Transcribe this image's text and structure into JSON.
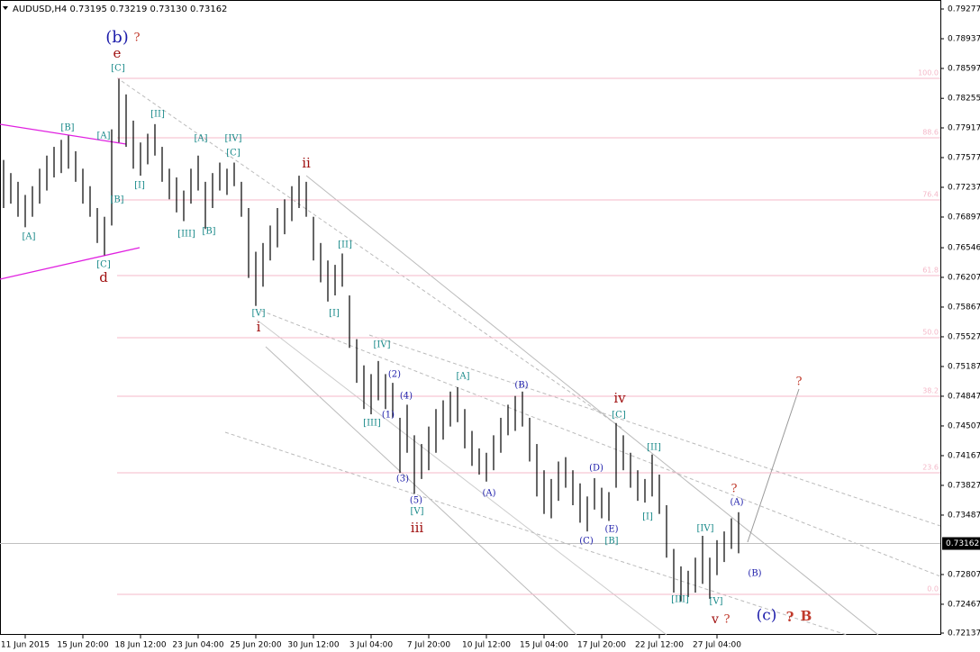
{
  "chart_data": {
    "type": "ohlc-range",
    "symbol_header": "AUDUSD,H4  0.73195 0.73219 0.73130 0.73162",
    "ylim": [
      0.72137,
      0.79277
    ],
    "yticks": [
      0.79277,
      0.78937,
      0.78597,
      0.78255,
      0.77917,
      0.77577,
      0.77237,
      0.76897,
      0.76546,
      0.76207,
      0.75867,
      0.75527,
      0.75187,
      0.74847,
      0.74507,
      0.74167,
      0.73827,
      0.73487,
      0.72807,
      0.72467,
      0.72137
    ],
    "last_price": 0.73162,
    "color": "#000000",
    "xticks": [
      {
        "value": 3,
        "label": "11 Jun 2015"
      },
      {
        "value": 11,
        "label": "15 Jun 20:00"
      },
      {
        "value": 19,
        "label": "18 Jun 12:00"
      },
      {
        "value": 27,
        "label": "23 Jun 04:00"
      },
      {
        "value": 35,
        "label": "25 Jun 20:00"
      },
      {
        "value": 43,
        "label": "30 Jun 12:00"
      },
      {
        "value": 51,
        "label": "3 Jul 04:00"
      },
      {
        "value": 59,
        "label": "7 Jul 20:00"
      },
      {
        "value": 67,
        "label": "10 Jul 12:00"
      },
      {
        "value": 75,
        "label": "15 Jul 04:00"
      },
      {
        "value": 83,
        "label": "17 Jul 20:00"
      },
      {
        "value": 91,
        "label": "22 Jul 12:00"
      },
      {
        "value": 99,
        "label": "27 Jul 04:00"
      }
    ],
    "fib_levels": [
      {
        "value": 0.78484,
        "label": "100.0"
      },
      {
        "value": 0.77804,
        "label": "88.6"
      },
      {
        "value": 0.77093,
        "label": "76.4"
      },
      {
        "value": 0.76227,
        "label": "61.8"
      },
      {
        "value": 0.75516,
        "label": "50.0"
      },
      {
        "value": 0.74847,
        "label": "38.2"
      },
      {
        "value": 0.73971,
        "label": "23.6"
      },
      {
        "value": 0.7258,
        "label": "0.0"
      }
    ],
    "bars": [
      [
        0.7755,
        0.77
      ],
      [
        0.774,
        0.7705
      ],
      [
        0.773,
        0.769
      ],
      [
        0.7715,
        0.7678
      ],
      [
        0.7725,
        0.769
      ],
      [
        0.7745,
        0.7705
      ],
      [
        0.776,
        0.772
      ],
      [
        0.777,
        0.7735
      ],
      [
        0.7778,
        0.774
      ],
      [
        0.7783,
        0.7745
      ],
      [
        0.7765,
        0.773
      ],
      [
        0.7745,
        0.7705
      ],
      [
        0.7725,
        0.769
      ],
      [
        0.77,
        0.766
      ],
      [
        0.769,
        0.7646
      ],
      [
        0.779,
        0.768
      ],
      [
        0.7848,
        0.7775
      ],
      [
        0.783,
        0.777
      ],
      [
        0.78,
        0.7745
      ],
      [
        0.7775,
        0.7737
      ],
      [
        0.7785,
        0.775
      ],
      [
        0.7796,
        0.776
      ],
      [
        0.777,
        0.773
      ],
      [
        0.7745,
        0.771
      ],
      [
        0.7735,
        0.7695
      ],
      [
        0.772,
        0.7685
      ],
      [
        0.7745,
        0.7705
      ],
      [
        0.776,
        0.772
      ],
      [
        0.773,
        0.7676
      ],
      [
        0.774,
        0.77
      ],
      [
        0.7752,
        0.772
      ],
      [
        0.7745,
        0.7715
      ],
      [
        0.7752,
        0.7725
      ],
      [
        0.773,
        0.769
      ],
      [
        0.77,
        0.762
      ],
      [
        0.765,
        0.7588
      ],
      [
        0.766,
        0.761
      ],
      [
        0.768,
        0.764
      ],
      [
        0.77,
        0.7655
      ],
      [
        0.771,
        0.767
      ],
      [
        0.7725,
        0.7685
      ],
      [
        0.7737,
        0.77
      ],
      [
        0.773,
        0.769
      ],
      [
        0.769,
        0.764
      ],
      [
        0.766,
        0.7615
      ],
      [
        0.764,
        0.7593
      ],
      [
        0.7635,
        0.76
      ],
      [
        0.7648,
        0.761
      ],
      [
        0.76,
        0.754
      ],
      [
        0.755,
        0.75
      ],
      [
        0.752,
        0.747
      ],
      [
        0.751,
        0.7464
      ],
      [
        0.7525,
        0.748
      ],
      [
        0.751,
        0.747
      ],
      [
        0.75,
        0.746
      ],
      [
        0.746,
        0.7397
      ],
      [
        0.7475,
        0.742
      ],
      [
        0.744,
        0.7373
      ],
      [
        0.743,
        0.739
      ],
      [
        0.745,
        0.74
      ],
      [
        0.747,
        0.742
      ],
      [
        0.748,
        0.7435
      ],
      [
        0.749,
        0.745
      ],
      [
        0.7495,
        0.7455
      ],
      [
        0.747,
        0.7425
      ],
      [
        0.7445,
        0.7405
      ],
      [
        0.7425,
        0.7395
      ],
      [
        0.742,
        0.7387
      ],
      [
        0.744,
        0.74
      ],
      [
        0.746,
        0.742
      ],
      [
        0.7475,
        0.744
      ],
      [
        0.7485,
        0.7445
      ],
      [
        0.749,
        0.745
      ],
      [
        0.746,
        0.741
      ],
      [
        0.743,
        0.737
      ],
      [
        0.74,
        0.735
      ],
      [
        0.739,
        0.7345
      ],
      [
        0.741,
        0.7365
      ],
      [
        0.7415,
        0.738
      ],
      [
        0.74,
        0.736
      ],
      [
        0.7385,
        0.734
      ],
      [
        0.737,
        0.733
      ],
      [
        0.7391,
        0.7355
      ],
      [
        0.738,
        0.7345
      ],
      [
        0.7375,
        0.7342
      ],
      [
        0.7454,
        0.738
      ],
      [
        0.744,
        0.74
      ],
      [
        0.742,
        0.738
      ],
      [
        0.74,
        0.7365
      ],
      [
        0.739,
        0.7363
      ],
      [
        0.7418,
        0.737
      ],
      [
        0.7395,
        0.735
      ],
      [
        0.736,
        0.73
      ],
      [
        0.731,
        0.726
      ],
      [
        0.729,
        0.725
      ],
      [
        0.7285,
        0.7255
      ],
      [
        0.73,
        0.726
      ],
      [
        0.7325,
        0.727
      ],
      [
        0.73,
        0.7253
      ],
      [
        0.732,
        0.728
      ],
      [
        0.733,
        0.7295
      ],
      [
        0.7345,
        0.731
      ],
      [
        0.7352,
        0.7305
      ]
    ],
    "annotations": [
      {
        "text": "(b)",
        "color": "#1c1caa"
      },
      {
        "text": "?",
        "color": "#c0392b"
      },
      {
        "text": "e",
        "color": "#a01010"
      },
      {
        "text": "[C]",
        "color": "#1a8a8a"
      },
      {
        "text": "[B]",
        "color": "#1a8a8a"
      },
      {
        "text": "[A]",
        "color": "#1a8a8a"
      },
      {
        "text": "[C]",
        "color": "#1a8a8a"
      },
      {
        "text": "d",
        "color": "#a01010"
      },
      {
        "text": "[A]",
        "color": "#1a8a8a"
      },
      {
        "text": "[B]",
        "color": "#1a8a8a"
      },
      {
        "text": "[I]",
        "color": "#1a8a8a"
      },
      {
        "text": "[II]",
        "color": "#1a8a8a"
      },
      {
        "text": "[A]",
        "color": "#1a8a8a"
      },
      {
        "text": "[IV]",
        "color": "#1a8a8a"
      },
      {
        "text": "[C]",
        "color": "#1a8a8a"
      },
      {
        "text": "[III]",
        "color": "#1a8a8a"
      },
      {
        "text": "[B]",
        "color": "#1a8a8a"
      },
      {
        "text": "ii",
        "color": "#a01010"
      },
      {
        "text": "[V]",
        "color": "#1a8a8a"
      },
      {
        "text": "i",
        "color": "#a01010"
      },
      {
        "text": "[II]",
        "color": "#1a8a8a"
      },
      {
        "text": "[I]",
        "color": "#1a8a8a"
      },
      {
        "text": "[IV]",
        "color": "#1a8a8a"
      },
      {
        "text": "(2)",
        "color": "#1c1caa"
      },
      {
        "text": "(4)",
        "color": "#1c1caa"
      },
      {
        "text": "(1)",
        "color": "#1c1caa"
      },
      {
        "text": "[III]",
        "color": "#1a8a8a"
      },
      {
        "text": "(3)",
        "color": "#1c1caa"
      },
      {
        "text": "(5)",
        "color": "#1c1caa"
      },
      {
        "text": "[V]",
        "color": "#1a8a8a"
      },
      {
        "text": "iii",
        "color": "#a01010"
      },
      {
        "text": "[A]",
        "color": "#1a8a8a"
      },
      {
        "text": "(B)",
        "color": "#1c1caa"
      },
      {
        "text": "(A)",
        "color": "#1c1caa"
      },
      {
        "text": "iv",
        "color": "#a01010"
      },
      {
        "text": "[C]",
        "color": "#1a8a8a"
      },
      {
        "text": "[II]",
        "color": "#1a8a8a"
      },
      {
        "text": "(D)",
        "color": "#1c1caa"
      },
      {
        "text": "[I]",
        "color": "#1a8a8a"
      },
      {
        "text": "(E)",
        "color": "#1c1caa"
      },
      {
        "text": "(C)",
        "color": "#1c1caa"
      },
      {
        "text": "[B]",
        "color": "#1a8a8a"
      },
      {
        "text": "[III]",
        "color": "#1a8a8a"
      },
      {
        "text": "[IV]",
        "color": "#1a8a8a"
      },
      {
        "text": "[V]",
        "color": "#1a8a8a"
      },
      {
        "text": "v",
        "color": "#a01010"
      },
      {
        "text": "?",
        "color": "#c0392b"
      },
      {
        "text": "?",
        "color": "#c0392b"
      },
      {
        "text": "(A)",
        "color": "#1c1caa"
      },
      {
        "text": "(B)",
        "color": "#1c1caa"
      },
      {
        "text": "(c)",
        "color": "#1c1caa"
      },
      {
        "text": "?",
        "color": "#c0392b"
      },
      {
        "text": "B",
        "color": "#c0392b"
      },
      {
        "text": "?",
        "color": "#c0392b"
      }
    ]
  }
}
